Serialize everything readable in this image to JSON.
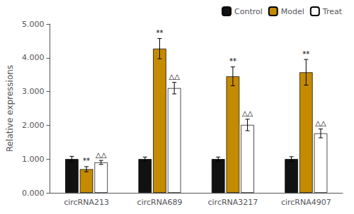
{
  "chart_data": {
    "type": "bar",
    "categories": [
      "circRNA213",
      "circRNA689",
      "circRNA3217",
      "circRNA4907"
    ],
    "series": [
      {
        "name": "Control",
        "color": "#111111",
        "values": [
          1.0,
          1.0,
          1.0,
          1.0
        ],
        "errors": [
          0.08,
          0.06,
          0.06,
          0.07
        ]
      },
      {
        "name": "Model",
        "color": "#C48A00",
        "values": [
          0.7,
          4.27,
          3.45,
          3.57
        ],
        "errors": [
          0.075,
          0.3,
          0.28,
          0.38
        ],
        "annotation": "**"
      },
      {
        "name": "Treat",
        "color": "#FFFFFF",
        "values": [
          0.9,
          3.1,
          2.01,
          1.76
        ],
        "errors": [
          0.06,
          0.17,
          0.17,
          0.13
        ],
        "annotation": "△△"
      }
    ],
    "ylabel": "Relative expressions",
    "ylim": [
      0.0,
      5.0
    ],
    "yticks": [
      {
        "value": 0,
        "label": "0.000"
      },
      {
        "value": 1,
        "label": "1.000"
      },
      {
        "value": 2,
        "label": "2.000"
      },
      {
        "value": 3,
        "label": "3.000"
      },
      {
        "value": 4,
        "label": "4.000"
      },
      {
        "value": 5,
        "label": "5.000"
      }
    ],
    "grid": false,
    "legend": "upper right"
  }
}
